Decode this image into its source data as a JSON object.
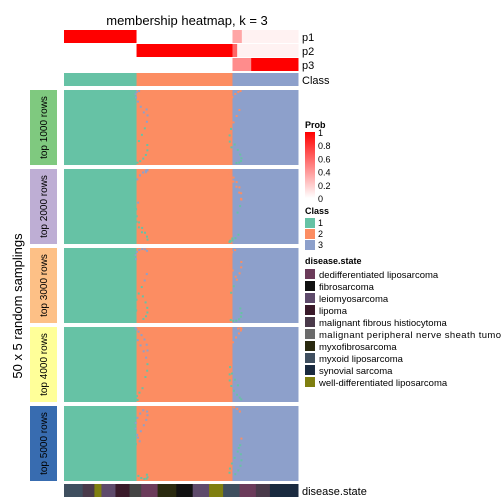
{
  "chart_data": {
    "type": "heatmap",
    "title": "membership heatmap, k = 3",
    "ylabel": "50 x 5 random samplings",
    "top_annotation": {
      "rows": [
        "p1",
        "p2",
        "p3",
        "Class"
      ],
      "p_rows": [
        {
          "name": "p1",
          "segments": [
            {
              "from": 0.0,
              "to": 0.31,
              "value": 1.0
            },
            {
              "from": 0.31,
              "to": 0.72,
              "value": 0.0
            },
            {
              "from": 0.72,
              "to": 0.76,
              "value": 0.35
            },
            {
              "from": 0.76,
              "to": 1.0,
              "value": 0.05
            }
          ]
        },
        {
          "name": "p2",
          "segments": [
            {
              "from": 0.0,
              "to": 0.31,
              "value": 0.0
            },
            {
              "from": 0.31,
              "to": 0.72,
              "value": 1.0
            },
            {
              "from": 0.72,
              "to": 0.74,
              "value": 0.6
            },
            {
              "from": 0.74,
              "to": 1.0,
              "value": 0.05
            }
          ]
        },
        {
          "name": "p3",
          "segments": [
            {
              "from": 0.0,
              "to": 0.31,
              "value": 0.0
            },
            {
              "from": 0.31,
              "to": 0.72,
              "value": 0.0
            },
            {
              "from": 0.72,
              "to": 0.8,
              "value": 0.45
            },
            {
              "from": 0.8,
              "to": 1.0,
              "value": 1.0
            }
          ]
        }
      ],
      "class_row": [
        {
          "from": 0.0,
          "to": 0.31,
          "class": "1"
        },
        {
          "from": 0.31,
          "to": 0.72,
          "class": "2"
        },
        {
          "from": 0.72,
          "to": 1.0,
          "class": "3"
        }
      ]
    },
    "row_groups": [
      {
        "label": "top 1000 rows",
        "color": "#7fc97f",
        "boundaries": [
          0.31,
          0.72
        ]
      },
      {
        "label": "top 2000 rows",
        "color": "#beaed4",
        "boundaries": [
          0.31,
          0.72
        ]
      },
      {
        "label": "top 3000 rows",
        "color": "#fdc086",
        "boundaries": [
          0.31,
          0.72
        ]
      },
      {
        "label": "top 4000 rows",
        "color": "#ffff99",
        "boundaries": [
          0.31,
          0.72
        ]
      },
      {
        "label": "top 5000 rows",
        "color": "#386cb0",
        "boundaries": [
          0.31,
          0.72
        ]
      }
    ],
    "bottom_annotation": {
      "label": "disease.state",
      "segments": [
        {
          "from": 0.0,
          "to": 0.08,
          "state": "myxoid liposarcoma"
        },
        {
          "from": 0.08,
          "to": 0.13,
          "state": "malignant fibrous histiocytoma"
        },
        {
          "from": 0.13,
          "to": 0.16,
          "state": "well-differentiated liposarcoma"
        },
        {
          "from": 0.16,
          "to": 0.22,
          "state": "leiomyosarcoma"
        },
        {
          "from": 0.22,
          "to": 0.28,
          "state": "lipoma"
        },
        {
          "from": 0.28,
          "to": 0.33,
          "state": "malignant peripheral nerve sheath tumor"
        },
        {
          "from": 0.33,
          "to": 0.4,
          "state": "dedifferentiated liposarcoma"
        },
        {
          "from": 0.4,
          "to": 0.48,
          "state": "myxofibrosarcoma"
        },
        {
          "from": 0.48,
          "to": 0.55,
          "state": "fibrosarcoma"
        },
        {
          "from": 0.55,
          "to": 0.62,
          "state": "leiomyosarcoma"
        },
        {
          "from": 0.62,
          "to": 0.68,
          "state": "well-differentiated liposarcoma"
        },
        {
          "from": 0.68,
          "to": 0.75,
          "state": "myxoid liposarcoma"
        },
        {
          "from": 0.75,
          "to": 0.82,
          "state": "dedifferentiated liposarcoma"
        },
        {
          "from": 0.82,
          "to": 0.88,
          "state": "malignant fibrous histiocytoma"
        },
        {
          "from": 0.88,
          "to": 1.0,
          "state": "synovial sarcoma"
        }
      ]
    },
    "legends": {
      "prob": {
        "title": "Prob",
        "ticks": [
          "1",
          "0.8",
          "0.6",
          "0.4",
          "0.2",
          "0"
        ],
        "range": [
          0,
          1
        ],
        "color_low": "#ffffff",
        "color_high": "#ff0000"
      },
      "class": {
        "title": "Class",
        "items": [
          {
            "label": "1",
            "color": "#66c2a5"
          },
          {
            "label": "2",
            "color": "#fc8d62"
          },
          {
            "label": "3",
            "color": "#8da0cb"
          }
        ]
      },
      "disease_state": {
        "title": "disease.state",
        "items": [
          {
            "label": "dedifferentiated liposarcoma",
            "color": "#6b3b5a"
          },
          {
            "label": "fibrosarcoma",
            "color": "#111111"
          },
          {
            "label": "leiomyosarcoma",
            "color": "#5e4a6b"
          },
          {
            "label": "lipoma",
            "color": "#3a1a2a"
          },
          {
            "label": "malignant fibrous histiocytoma",
            "color": "#4a3a4a"
          },
          {
            "label": "malignant peripheral nerve sheath tumo",
            "color": "#6b6b6b"
          },
          {
            "label": "myxofibrosarcoma",
            "color": "#2a2a10"
          },
          {
            "label": "myxoid liposarcoma",
            "color": "#3f4f5f"
          },
          {
            "label": "synovial sarcoma",
            "color": "#1a2a3f"
          },
          {
            "label": "well-differentiated liposarcoma",
            "color": "#7f7f10"
          }
        ]
      }
    }
  }
}
